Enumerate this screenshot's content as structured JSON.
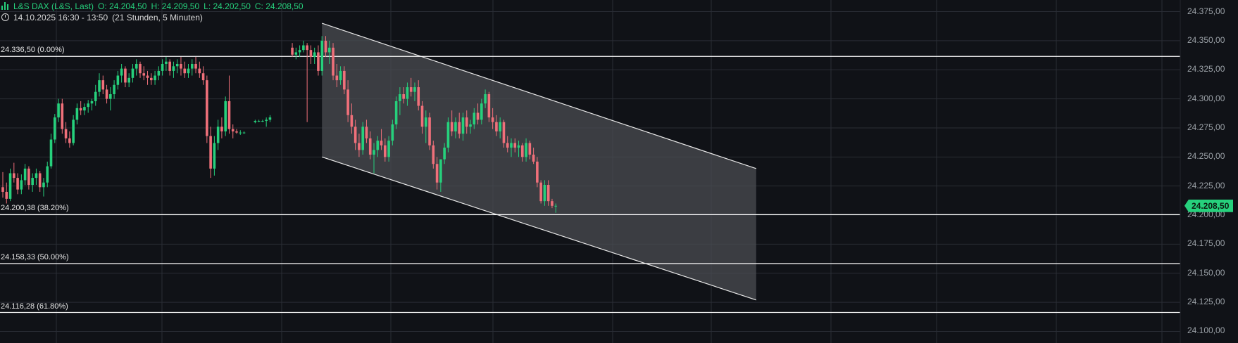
{
  "header": {
    "instrument": "L&S DAX (L&S, Last)",
    "open": "O: 24.204,50",
    "high": "H: 24.209,50",
    "low": "L: 24.202,50",
    "close": "C: 24.208,50",
    "time_range": "14.10.2025 16:30 - 13:50",
    "duration": "(21 Stunden, 5 Minuten)"
  },
  "colors": {
    "background": "#101217",
    "up": "#26d07c",
    "down": "#f0707a",
    "grid": "#2a2d35",
    "fib_line": "#ffffff",
    "channel_fill": "#4a4c52"
  },
  "current_price_label": "24.208,50",
  "chart_data": {
    "type": "candlestick",
    "y_axis": {
      "range": [
        24090,
        24385
      ],
      "ticks": [
        24100,
        24125,
        24150,
        24175,
        24200,
        24225,
        24250,
        24275,
        24300,
        24325,
        24350,
        24375
      ],
      "tick_labels": [
        "24.100,00",
        "24.125,00",
        "24.150,00",
        "24.175,00",
        "24.200,00",
        "24.225,00",
        "24.250,00",
        "24.275,00",
        "24.300,00",
        "24.325,00",
        "24.350,00",
        "24.375,00"
      ],
      "position": "right"
    },
    "fib_levels": [
      {
        "value": 24336.5,
        "label": "24.336,50 (0.00%)"
      },
      {
        "value": 24200.38,
        "label": "24.200,38 (38.20%)"
      },
      {
        "value": 24158.33,
        "label": "24.158,33 (50.00%)"
      },
      {
        "value": 24116.28,
        "label": "24.116,28 (61.80%)"
      }
    ],
    "channel": {
      "upper": {
        "from_bar": 86,
        "from": 24365,
        "to_bar": 203,
        "to": 24240
      },
      "lower": {
        "from_bar": 86,
        "from": 24250,
        "to_bar": 203,
        "to": 24127
      }
    },
    "candles": [
      [
        24224,
        24237,
        24215,
        24220
      ],
      [
        24220,
        24228,
        24210,
        24214
      ],
      [
        24214,
        24240,
        24212,
        24236
      ],
      [
        24236,
        24245,
        24228,
        24232
      ],
      [
        24232,
        24236,
        24218,
        24222
      ],
      [
        24222,
        24235,
        24218,
        24230
      ],
      [
        24230,
        24244,
        24226,
        24240
      ],
      [
        24240,
        24242,
        24222,
        24226
      ],
      [
        24226,
        24236,
        24220,
        24232
      ],
      [
        24232,
        24240,
        24226,
        24236
      ],
      [
        24236,
        24238,
        24220,
        24224
      ],
      [
        24224,
        24232,
        24216,
        24228
      ],
      [
        24228,
        24246,
        24224,
        24242
      ],
      [
        24242,
        24270,
        24240,
        24265
      ],
      [
        24265,
        24287,
        24262,
        24284
      ],
      [
        24284,
        24300,
        24280,
        24296
      ],
      [
        24296,
        24300,
        24270,
        24274
      ],
      [
        24274,
        24280,
        24262,
        24266
      ],
      [
        24266,
        24272,
        24258,
        24262
      ],
      [
        24262,
        24286,
        24260,
        24282
      ],
      [
        24282,
        24296,
        24278,
        24292
      ],
      [
        24292,
        24298,
        24286,
        24290
      ],
      [
        24290,
        24296,
        24286,
        24293
      ],
      [
        24293,
        24299,
        24288,
        24296
      ],
      [
        24296,
        24300,
        24290,
        24298
      ],
      [
        24298,
        24312,
        24294,
        24306
      ],
      [
        24306,
        24322,
        24302,
        24316
      ],
      [
        24316,
        24320,
        24304,
        24308
      ],
      [
        24308,
        24312,
        24296,
        24300
      ],
      [
        24300,
        24310,
        24290,
        24304
      ],
      [
        24304,
        24316,
        24300,
        24312
      ],
      [
        24312,
        24324,
        24308,
        24320
      ],
      [
        24320,
        24330,
        24314,
        24326
      ],
      [
        24326,
        24328,
        24310,
        24314
      ],
      [
        24314,
        24322,
        24310,
        24318
      ],
      [
        24318,
        24330,
        24314,
        24326
      ],
      [
        24326,
        24334,
        24320,
        24330
      ],
      [
        24330,
        24332,
        24318,
        24322
      ],
      [
        24322,
        24328,
        24316,
        24320
      ],
      [
        24320,
        24324,
        24312,
        24318
      ],
      [
        24318,
        24322,
        24312,
        24316
      ],
      [
        24316,
        24324,
        24312,
        24320
      ],
      [
        24320,
        24328,
        24316,
        24324
      ],
      [
        24324,
        24334,
        24320,
        24330
      ],
      [
        24330,
        24336,
        24324,
        24332
      ],
      [
        24332,
        24334,
        24320,
        24324
      ],
      [
        24324,
        24332,
        24318,
        24328
      ],
      [
        24328,
        24334,
        24322,
        24330
      ],
      [
        24330,
        24336,
        24320,
        24326
      ],
      [
        24326,
        24332,
        24318,
        24322
      ],
      [
        24322,
        24330,
        24318,
        24326
      ],
      [
        24326,
        24334,
        24320,
        24330
      ],
      [
        24330,
        24336,
        24322,
        24326
      ],
      [
        24326,
        24332,
        24318,
        24322
      ],
      [
        24322,
        24328,
        24312,
        24316
      ],
      [
        24316,
        24320,
        24262,
        24268
      ],
      [
        24268,
        24276,
        24232,
        24240
      ],
      [
        24240,
        24268,
        24234,
        24262
      ],
      [
        24262,
        24282,
        24256,
        24276
      ],
      [
        24276,
        24284,
        24266,
        24272
      ],
      [
        24272,
        24302,
        24268,
        24298
      ],
      [
        24298,
        24320,
        24270,
        24274
      ],
      [
        24274,
        24278,
        24266,
        24272
      ],
      [
        24272,
        24274,
        24270,
        24271
      ],
      [
        24271,
        24273,
        24269,
        24271
      ],
      [
        24271,
        24272,
        24270,
        24271
      ],
      [
        null,
        null,
        null,
        null
      ],
      [
        null,
        null,
        null,
        null
      ],
      [
        24280,
        24282,
        24279,
        24281
      ],
      [
        24281,
        24282,
        24280,
        24281
      ],
      [
        24281,
        24282,
        24280,
        24281
      ],
      [
        24281,
        24284,
        24276,
        24282
      ],
      [
        24282,
        24286,
        24280,
        24284
      ],
      [
        null,
        null,
        null,
        null
      ],
      [
        null,
        null,
        null,
        null
      ],
      [
        null,
        null,
        null,
        null
      ],
      [
        null,
        null,
        null,
        null
      ],
      [
        null,
        null,
        null,
        null
      ],
      [
        24344,
        24348,
        24336,
        24338
      ],
      [
        24338,
        24344,
        24334,
        24340
      ],
      [
        24340,
        24346,
        24336,
        24342
      ],
      [
        24342,
        24350,
        24340,
        24346
      ],
      [
        24346,
        24348,
        24280,
        24342
      ],
      [
        24342,
        24346,
        24330,
        24336
      ],
      [
        24336,
        24344,
        24330,
        24340
      ],
      [
        24340,
        24346,
        24320,
        24324
      ],
      [
        24324,
        24354,
        24320,
        24350
      ],
      [
        24350,
        24354,
        24336,
        24340
      ],
      [
        24340,
        24350,
        24330,
        24344
      ],
      [
        24344,
        24348,
        24316,
        24320
      ],
      [
        24320,
        24330,
        24310,
        24316
      ],
      [
        24316,
        24328,
        24312,
        24324
      ],
      [
        24324,
        24328,
        24304,
        24308
      ],
      [
        24308,
        24316,
        24280,
        24286
      ],
      [
        24286,
        24296,
        24270,
        24276
      ],
      [
        24276,
        24282,
        24256,
        24262
      ],
      [
        24262,
        24270,
        24250,
        24256
      ],
      [
        24256,
        24280,
        24252,
        24276
      ],
      [
        24276,
        24282,
        24262,
        24266
      ],
      [
        24266,
        24272,
        24248,
        24252
      ],
      [
        24252,
        24262,
        24236,
        24256
      ],
      [
        24256,
        24268,
        24250,
        24264
      ],
      [
        24264,
        24274,
        24256,
        24260
      ],
      [
        24260,
        24266,
        24246,
        24250
      ],
      [
        24250,
        24268,
        24246,
        24264
      ],
      [
        24264,
        24282,
        24260,
        24278
      ],
      [
        24278,
        24302,
        24274,
        24298
      ],
      [
        24298,
        24310,
        24286,
        24304
      ],
      [
        24304,
        24310,
        24296,
        24300
      ],
      [
        24300,
        24314,
        24294,
        24310
      ],
      [
        24310,
        24318,
        24302,
        24306
      ],
      [
        24306,
        24314,
        24298,
        24310
      ],
      [
        24310,
        24316,
        24290,
        24294
      ],
      [
        24294,
        24298,
        24270,
        24276
      ],
      [
        24276,
        24290,
        24262,
        24284
      ],
      [
        24284,
        24288,
        24256,
        24260
      ],
      [
        24260,
        24264,
        24240,
        24244
      ],
      [
        24244,
        24250,
        24222,
        24228
      ],
      [
        24228,
        24244,
        24220,
        24248
      ],
      [
        24248,
        24262,
        24244,
        24258
      ],
      [
        24258,
        24284,
        24254,
        24280
      ],
      [
        24280,
        24290,
        24268,
        24272
      ],
      [
        24272,
        24284,
        24266,
        24280
      ],
      [
        24280,
        24288,
        24266,
        24270
      ],
      [
        24270,
        24288,
        24264,
        24284
      ],
      [
        24284,
        24290,
        24270,
        24276
      ],
      [
        24276,
        24282,
        24270,
        24278
      ],
      [
        24278,
        24292,
        24274,
        24288
      ],
      [
        24288,
        24296,
        24278,
        24282
      ],
      [
        24282,
        24300,
        24278,
        24296
      ],
      [
        24296,
        24308,
        24292,
        24304
      ],
      [
        24304,
        24306,
        24280,
        24284
      ],
      [
        24284,
        24292,
        24274,
        24280
      ],
      [
        24280,
        24286,
        24268,
        24272
      ],
      [
        24272,
        24284,
        24266,
        24280
      ],
      [
        24280,
        24282,
        24258,
        24262
      ],
      [
        24262,
        24268,
        24254,
        24258
      ],
      [
        24258,
        24266,
        24250,
        24262
      ],
      [
        24262,
        24266,
        24254,
        24258
      ],
      [
        24258,
        24264,
        24250,
        24260
      ],
      [
        24260,
        24262,
        24246,
        24250
      ],
      [
        24250,
        24266,
        24246,
        24262
      ],
      [
        24262,
        24264,
        24248,
        24252
      ],
      [
        24252,
        24258,
        24244,
        24246
      ],
      [
        24246,
        24250,
        24224,
        24228
      ],
      [
        24228,
        24230,
        24210,
        24212
      ],
      [
        24212,
        24230,
        24208,
        24226
      ],
      [
        24226,
        24230,
        24208,
        24212
      ],
      [
        24212,
        24214,
        24206,
        24208
      ],
      [
        24208,
        24210,
        24202,
        24208
      ]
    ]
  }
}
